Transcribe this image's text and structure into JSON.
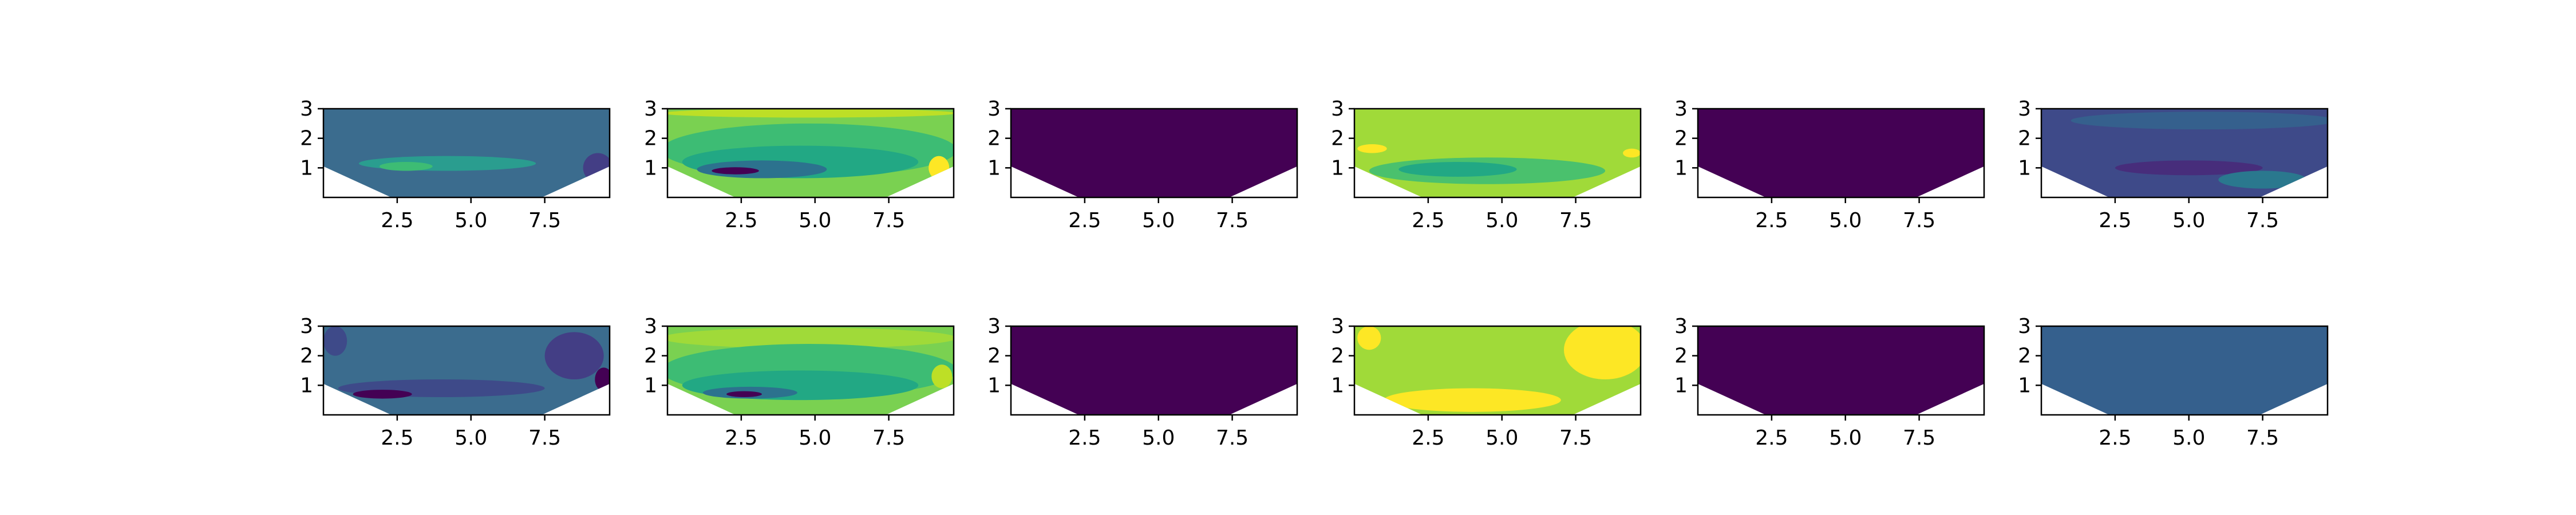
{
  "chart_data": {
    "type": "contour_grid",
    "rows": 2,
    "cols": 6,
    "xlim": [
      0,
      9.7
    ],
    "ylim": [
      0,
      3
    ],
    "x_ticks": [
      "2.5",
      "5.0",
      "7.5"
    ],
    "y_ticks": [
      "1",
      "2",
      "3"
    ],
    "domain_bottom": {
      "left_top_y": 1.05,
      "floor_x": [
        2.3,
        7.4
      ],
      "right_top_y": 1.05
    },
    "panels": [
      {
        "row": 0,
        "col": 0,
        "base": "#3b6c8e",
        "blobs": [
          {
            "cx": 4.2,
            "cy": 1.15,
            "rx": 3.0,
            "ry": 0.25,
            "color": "#2a9d8f"
          },
          {
            "cx": 2.8,
            "cy": 1.05,
            "rx": 0.9,
            "ry": 0.15,
            "color": "#3dbc74"
          },
          {
            "cx": 9.3,
            "cy": 1.0,
            "rx": 0.5,
            "ry": 0.5,
            "color": "#433e85"
          }
        ]
      },
      {
        "row": 0,
        "col": 1,
        "base": "#7ad151",
        "blobs": [
          {
            "cx": 4.8,
            "cy": 2.85,
            "rx": 5.0,
            "ry": 0.15,
            "color": "#bddf26"
          },
          {
            "cx": 4.8,
            "cy": 1.6,
            "rx": 5.0,
            "ry": 0.9,
            "color": "#3dbc74"
          },
          {
            "cx": 4.5,
            "cy": 1.2,
            "rx": 4.0,
            "ry": 0.55,
            "color": "#22a884"
          },
          {
            "cx": 3.2,
            "cy": 0.95,
            "rx": 2.2,
            "ry": 0.3,
            "color": "#2c728e"
          },
          {
            "cx": 2.3,
            "cy": 0.9,
            "rx": 0.8,
            "ry": 0.12,
            "color": "#440154"
          },
          {
            "cx": 9.2,
            "cy": 1.0,
            "rx": 0.35,
            "ry": 0.4,
            "color": "#fde725"
          }
        ]
      },
      {
        "row": 0,
        "col": 2,
        "base": "#440154",
        "blobs": []
      },
      {
        "row": 0,
        "col": 3,
        "base": "#a0da39",
        "blobs": [
          {
            "cx": 4.5,
            "cy": 0.9,
            "rx": 4.0,
            "ry": 0.45,
            "color": "#4ac16d"
          },
          {
            "cx": 3.5,
            "cy": 0.95,
            "rx": 2.0,
            "ry": 0.25,
            "color": "#22a884"
          },
          {
            "cx": 0.6,
            "cy": 1.65,
            "rx": 0.5,
            "ry": 0.15,
            "color": "#fde725"
          },
          {
            "cx": 9.4,
            "cy": 1.5,
            "rx": 0.3,
            "ry": 0.15,
            "color": "#fde725"
          }
        ]
      },
      {
        "row": 0,
        "col": 4,
        "base": "#440154",
        "blobs": []
      },
      {
        "row": 0,
        "col": 5,
        "base": "#3e4a89",
        "blobs": [
          {
            "cx": 5.5,
            "cy": 2.6,
            "rx": 4.5,
            "ry": 0.3,
            "color": "#35608d"
          },
          {
            "cx": 5.0,
            "cy": 1.0,
            "rx": 2.5,
            "ry": 0.25,
            "color": "#472d7b"
          },
          {
            "cx": 7.5,
            "cy": 0.6,
            "rx": 1.5,
            "ry": 0.3,
            "color": "#2a788e"
          }
        ]
      }
    ]
  }
}
